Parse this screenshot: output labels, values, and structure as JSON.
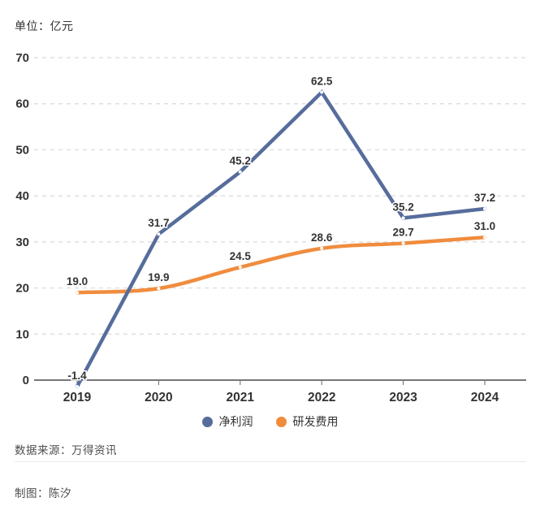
{
  "header": {
    "unit_label": "单位：亿元"
  },
  "chart_data": {
    "type": "line",
    "title": "",
    "categories": [
      "2019",
      "2020",
      "2021",
      "2022",
      "2023",
      "2024"
    ],
    "series": [
      {
        "name": "净利润",
        "color": "#566d9c",
        "smooth": false,
        "values": [
          -1.4,
          31.7,
          45.2,
          62.5,
          35.2,
          37.2
        ]
      },
      {
        "name": "研发费用",
        "color": "#f08c3e",
        "smooth": true,
        "values": [
          19.0,
          19.9,
          24.5,
          28.6,
          29.7,
          31.0
        ]
      }
    ],
    "xlabel": "",
    "ylabel": "亿元",
    "ylim": [
      0,
      70
    ],
    "y_ticks": [
      0,
      10,
      20,
      30,
      40,
      50,
      60,
      70
    ],
    "grid": "horizontal-dashed",
    "legend_position": "bottom",
    "value_labels": true,
    "value_label_decimals": 1,
    "colors": {
      "grid_line": "#d9d9d9",
      "axis_line": "#4a4a4a",
      "tick_label": "#333333",
      "value_label": "#333333",
      "point_marker": "#ffffff"
    }
  },
  "footer": {
    "source": "数据来源：万得资讯",
    "author": "制图：陈汐"
  }
}
